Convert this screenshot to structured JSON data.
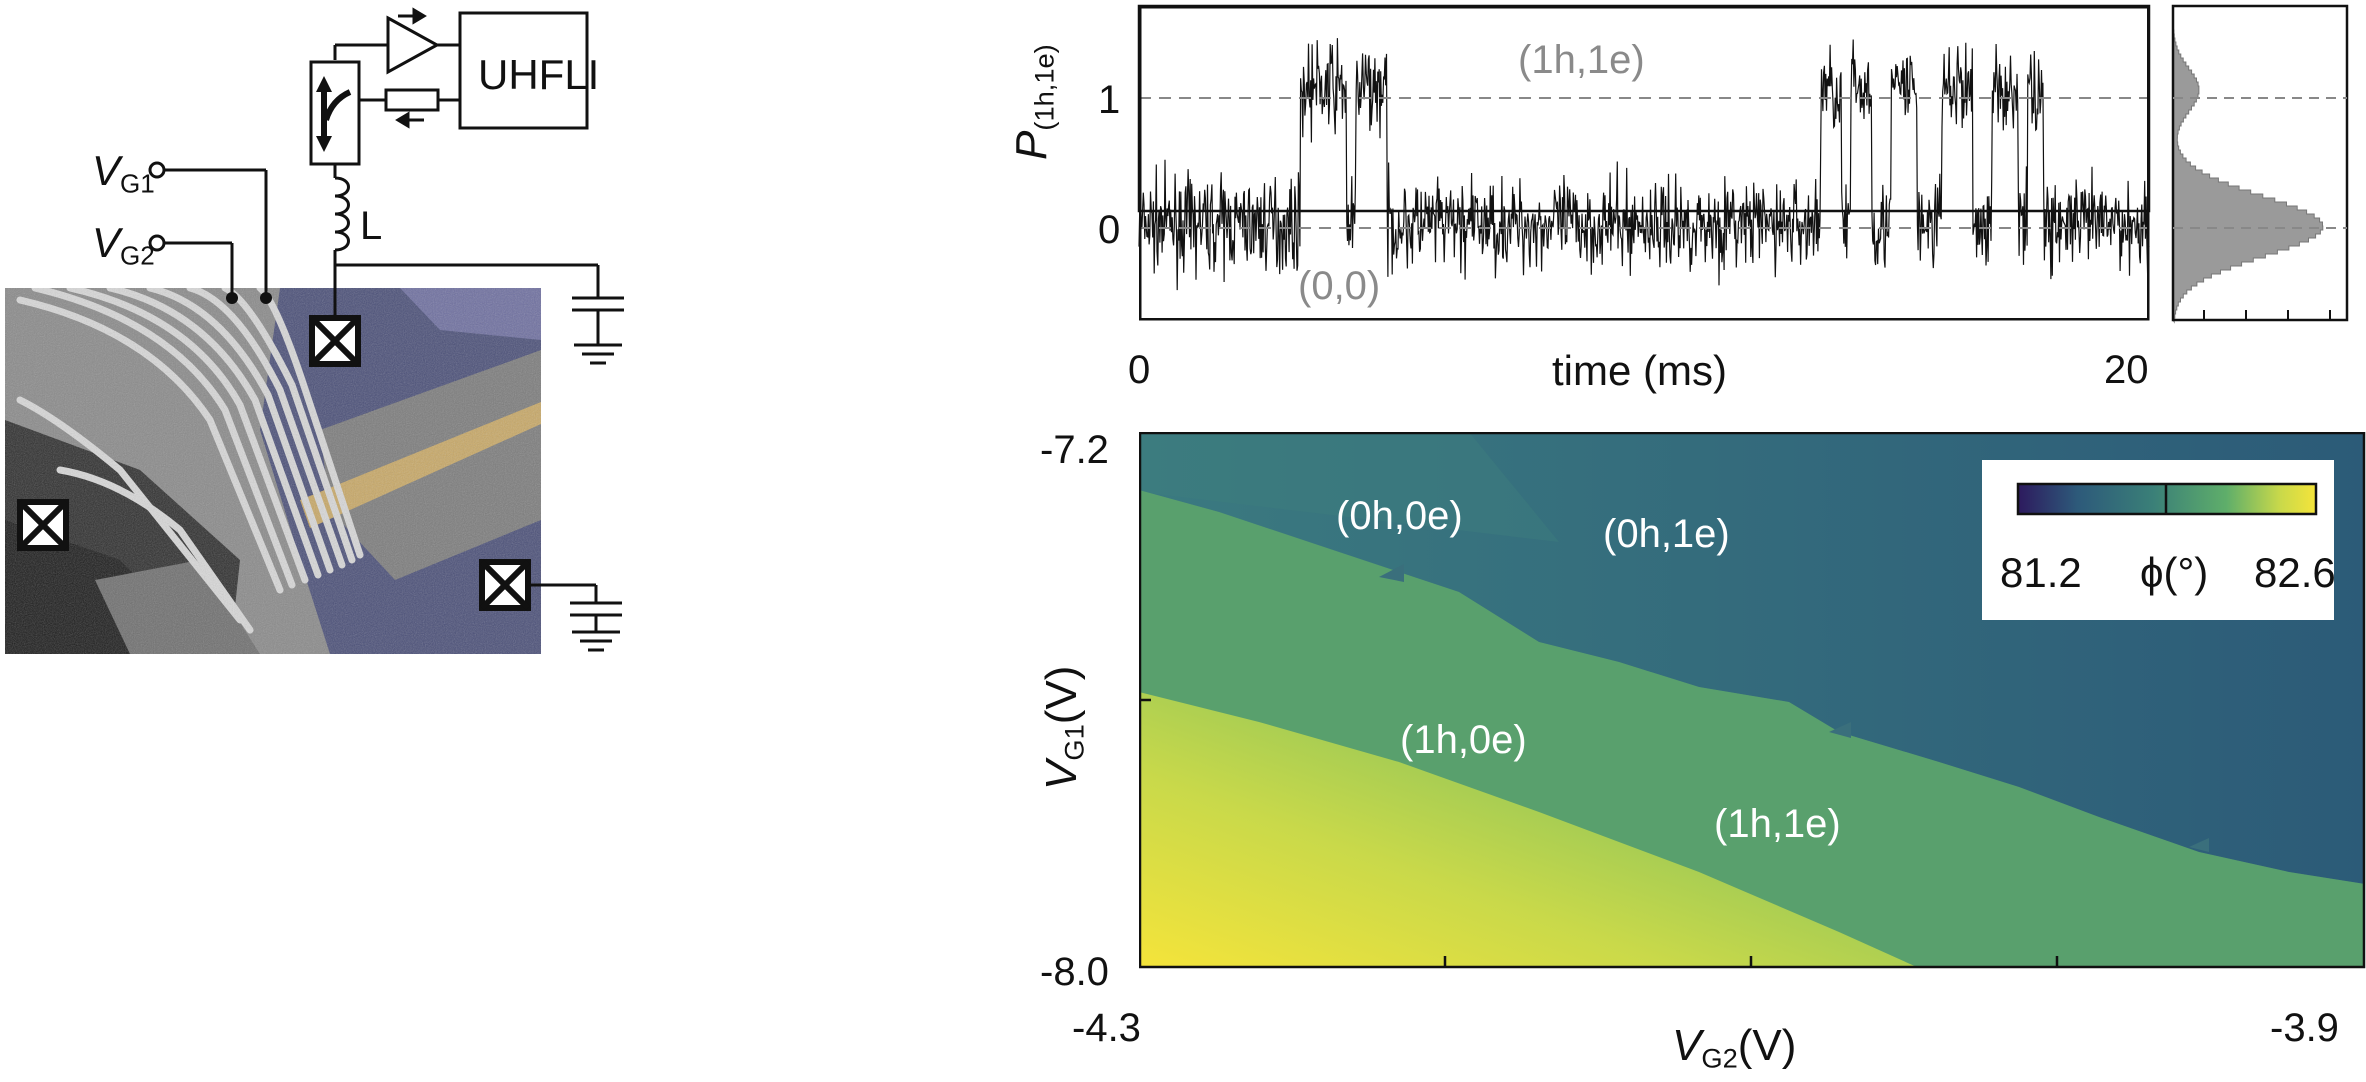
{
  "circuit": {
    "uhfli_label": "UHFLI",
    "gate1_label_main": "V",
    "gate1_label_sub": "G1",
    "gate2_label_main": "V",
    "gate2_label_sub": "G2",
    "inductor_label": "L"
  },
  "trace_panel": {
    "ylabel_main": "P",
    "ylabel_sub": "(1h,1e)",
    "xlabel": "time (ms)",
    "y_tick_1": "1",
    "y_tick_0": "0",
    "x_tick_start": "0",
    "x_tick_end": "20",
    "state_upper": "(1h,1e)",
    "state_lower": "(0,0)"
  },
  "map_panel": {
    "y_tick_top": "-7.2",
    "y_tick_bottom": "-8.0",
    "x_tick_left": "-4.3",
    "x_tick_right": "-3.9",
    "ylabel_main": "V",
    "ylabel_sub": "G1",
    "ylabel_unit": "(V)",
    "xlabel_main": "V",
    "xlabel_sub": "G2",
    "xlabel_unit": "(V)",
    "region_00": "(0h,0e)",
    "region_01": "(0h,1e)",
    "region_10": "(1h,0e)",
    "region_11": "(1h,1e)",
    "colorbar_min": "81.2",
    "colorbar_label": "ϕ(°)",
    "colorbar_max": "82.6",
    "colorbar_colors": [
      "#2d1a5e",
      "#2d5a7a",
      "#3a7f78",
      "#5fae6a",
      "#c9d94a",
      "#f5e43a"
    ]
  },
  "chart_data": [
    {
      "type": "line",
      "title": "",
      "xlabel": "time (ms)",
      "ylabel": "P(1h,1e)",
      "xlim": [
        0,
        20
      ],
      "ylim": [
        -0.7,
        1.6
      ],
      "levels": [
        0,
        1
      ],
      "high_intervals_ms": [
        [
          3.2,
          4.1
        ],
        [
          4.3,
          4.9
        ],
        [
          13.5,
          13.9
        ],
        [
          14.1,
          14.5
        ],
        [
          14.9,
          15.4
        ],
        [
          15.9,
          16.5
        ],
        [
          16.9,
          17.4
        ],
        [
          17.6,
          17.9
        ]
      ]
    },
    {
      "type": "heatmap",
      "xlabel": "VG2(V)",
      "ylabel": "VG1(V)",
      "xlim": [
        -4.3,
        -3.9
      ],
      "ylim": [
        -8.0,
        -7.2
      ],
      "colorbar_range": [
        81.2,
        82.6
      ],
      "colorbar_label": "ϕ(°)",
      "regions": [
        "(0h,0e)",
        "(0h,1e)",
        "(1h,0e)",
        "(1h,1e)"
      ]
    }
  ]
}
